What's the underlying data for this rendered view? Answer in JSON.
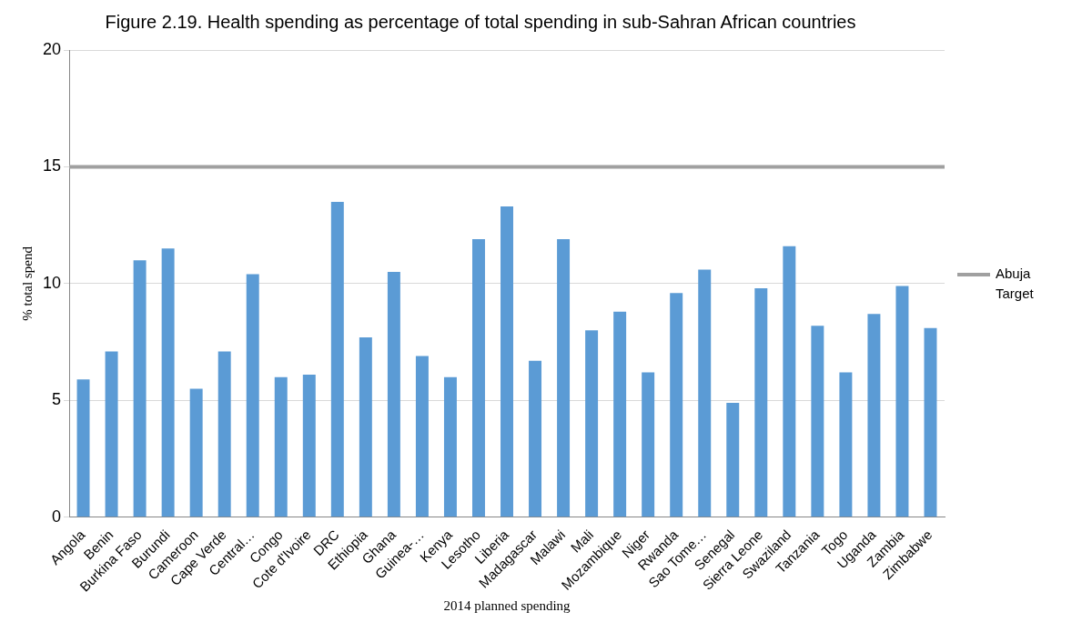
{
  "chart_data": {
    "type": "bar",
    "title": "Figure 2.19. Health spending as percentage of total spending in sub-Sahran African countries",
    "xlabel": "2014 planned spending",
    "ylabel": "% total spend",
    "categories": [
      "Angola",
      "Benin",
      "Burkina Faso",
      "Burundi",
      "Cameroon",
      "Cape Verde",
      "Central…",
      "Congo",
      "Cote d'Ivoire",
      "DRC",
      "Ethiopia",
      "Ghana",
      "Guinea-…",
      "Kenya",
      "Lesotho",
      "Liberia",
      "Madagascar",
      "Malawi",
      "Mali",
      "Mozambique",
      "Niger",
      "Rwanda",
      "Sao Tome…",
      "Senegal",
      "Sierra Leone",
      "Swaziland",
      "Tanzania",
      "Togo",
      "Uganda",
      "Zambia",
      "Zimbabwe"
    ],
    "values": [
      5.9,
      7.1,
      11.0,
      11.5,
      5.5,
      7.1,
      10.4,
      6.0,
      6.1,
      13.5,
      7.7,
      10.5,
      6.9,
      6.0,
      11.9,
      13.3,
      6.7,
      11.9,
      8.0,
      8.8,
      6.2,
      9.6,
      10.6,
      4.9,
      9.8,
      11.6,
      8.2,
      6.2,
      8.7,
      9.9,
      8.1
    ],
    "color": "#5b9bd5",
    "ylim": [
      0,
      20
    ],
    "yticks": [
      0,
      5,
      10,
      15,
      20
    ],
    "grid": "y",
    "legend": "right",
    "ref_lines": [
      {
        "axis": "y",
        "value": 15,
        "label": "Abuja Target",
        "color": "#a0a0a0"
      }
    ]
  }
}
